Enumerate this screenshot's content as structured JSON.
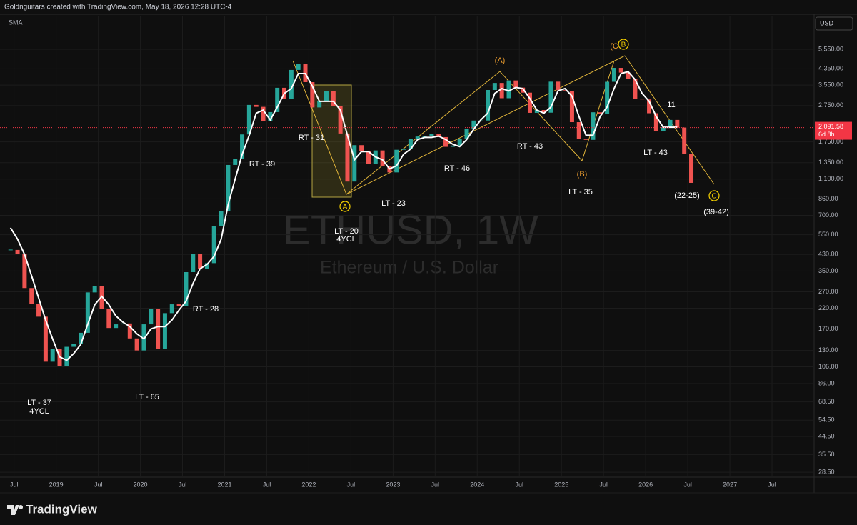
{
  "header": {
    "text": "Goldnguitars created with TradingView.com, May 18, 2026 12:28 UTC-4",
    "logo": "TradingView"
  },
  "chart_data": {
    "type": "candlestick",
    "title": "ETHUSD, 1W",
    "subtitle": "Ethereum / U.S. Dollar",
    "currency": "USD",
    "log_scale": true,
    "grid": true,
    "up_color": "#26a69a",
    "down_color": "#ef5350",
    "x": [
      "2018-06",
      "2018-07",
      "2018-08",
      "2018-09",
      "2018-10",
      "2018-11",
      "2018-12",
      "2019-01",
      "2019-02",
      "2019-03",
      "2019-04",
      "2019-05",
      "2019-06",
      "2019-07",
      "2019-08",
      "2019-09",
      "2019-10",
      "2019-11",
      "2019-12",
      "2020-01",
      "2020-02",
      "2020-03",
      "2020-04",
      "2020-05",
      "2020-06",
      "2020-07",
      "2020-08",
      "2020-09",
      "2020-10",
      "2020-11",
      "2020-12",
      "2021-01",
      "2021-02",
      "2021-03",
      "2021-04",
      "2021-05",
      "2021-06",
      "2021-07",
      "2021-08",
      "2021-09",
      "2021-10",
      "2021-11",
      "2021-12",
      "2022-01",
      "2022-02",
      "2022-03",
      "2022-04",
      "2022-05",
      "2022-06",
      "2022-07",
      "2022-08",
      "2022-09",
      "2022-10",
      "2022-11",
      "2022-12",
      "2023-01",
      "2023-02",
      "2023-03",
      "2023-04",
      "2023-05",
      "2023-06",
      "2023-07",
      "2023-08",
      "2023-09",
      "2023-10",
      "2023-11",
      "2023-12",
      "2024-01",
      "2024-02",
      "2024-03",
      "2024-04",
      "2024-05",
      "2024-06",
      "2024-07",
      "2024-08",
      "2024-09",
      "2024-10",
      "2024-11",
      "2024-12",
      "2025-01",
      "2025-02",
      "2025-03",
      "2025-04",
      "2025-05",
      "2025-06",
      "2025-07",
      "2025-08",
      "2025-09",
      "2025-10",
      "2025-11",
      "2025-12",
      "2026-01",
      "2026-02",
      "2026-03",
      "2026-04",
      "2026-05",
      "2026-06",
      "2026-07"
    ],
    "values": [
      455,
      433,
      283,
      232,
      198,
      113,
      133,
      107,
      136,
      141,
      162,
      268,
      291,
      218,
      172,
      180,
      182,
      151,
      130,
      180,
      218,
      133,
      207,
      231,
      225,
      345,
      434,
      359,
      386,
      612,
      737,
      1312,
      1417,
      1919,
      2773,
      2707,
      2275,
      2536,
      3433,
      3001,
      4288,
      4631,
      3683,
      2688,
      2922,
      3283,
      2728,
      1942,
      1067,
      1679,
      1553,
      1328,
      1572,
      1296,
      1196,
      1585,
      1605,
      1822,
      1870,
      1874,
      1934,
      1857,
      1645,
      1671,
      1816,
      2052,
      2282,
      2283,
      3340,
      3647,
      3015,
      3761,
      3440,
      3231,
      2513,
      2602,
      2518,
      3705,
      3332,
      3300,
      2237,
      1822,
      1794,
      2530,
      2486,
      3700,
      4400,
      4150,
      3850,
      3000,
      2970,
      2500,
      2000,
      2100,
      2300,
      2091.58,
      1500,
      1050
    ],
    "sma": {
      "name": "SMA",
      "color": "#ffffff",
      "values": [
        600,
        520,
        430,
        330,
        250,
        190,
        150,
        120,
        115,
        125,
        140,
        180,
        230,
        255,
        230,
        200,
        185,
        175,
        160,
        150,
        170,
        175,
        175,
        190,
        215,
        240,
        300,
        360,
        380,
        420,
        520,
        800,
        1100,
        1500,
        1900,
        2500,
        2600,
        2300,
        2700,
        3200,
        3400,
        4100,
        4100,
        3500,
        2900,
        2900,
        2900,
        2600,
        1900,
        1400,
        1550,
        1550,
        1450,
        1400,
        1250,
        1300,
        1500,
        1600,
        1800,
        1850,
        1850,
        1880,
        1800,
        1700,
        1650,
        1800,
        2050,
        2300,
        2500,
        3200,
        3400,
        3300,
        3450,
        3400,
        3000,
        2600,
        2500,
        2700,
        3300,
        3400,
        3100,
        2400,
        1900,
        1900,
        2400,
        2700,
        3400,
        4100,
        4200,
        3800,
        3200,
        2900,
        2400,
        2100,
        2100,
        2100,
        null,
        null
      ]
    },
    "last_price": {
      "value": 2091.58,
      "label": "2,091.58"
    },
    "countdown": "6d 8h",
    "xlim": [
      "2018-05",
      "2028-01"
    ],
    "xticks": [
      {
        "value": "2018-07",
        "label": "Jul"
      },
      {
        "value": "2019-01",
        "label": "2019"
      },
      {
        "value": "2019-07",
        "label": "Jul"
      },
      {
        "value": "2020-01",
        "label": "2020"
      },
      {
        "value": "2020-07",
        "label": "Jul"
      },
      {
        "value": "2021-01",
        "label": "2021"
      },
      {
        "value": "2021-07",
        "label": "Jul"
      },
      {
        "value": "2022-01",
        "label": "2022"
      },
      {
        "value": "2022-07",
        "label": "Jul"
      },
      {
        "value": "2023-01",
        "label": "2023"
      },
      {
        "value": "2023-07",
        "label": "Jul"
      },
      {
        "value": "2024-01",
        "label": "2024"
      },
      {
        "value": "2024-07",
        "label": "Jul"
      },
      {
        "value": "2025-01",
        "label": "2025"
      },
      {
        "value": "2025-07",
        "label": "Jul"
      },
      {
        "value": "2026-01",
        "label": "2026"
      },
      {
        "value": "2026-07",
        "label": "Jul"
      },
      {
        "value": "2027-01",
        "label": "2027"
      },
      {
        "value": "2027-07",
        "label": "Jul"
      }
    ],
    "ylim": [
      26.8,
      8430
    ],
    "yticks": [
      {
        "value": 5550,
        "label": "5,550.00"
      },
      {
        "value": 4350,
        "label": "4,350.00"
      },
      {
        "value": 3550,
        "label": "3,550.00"
      },
      {
        "value": 2750,
        "label": "2,750.00"
      },
      {
        "value": 1750,
        "label": "1,750.00"
      },
      {
        "value": 1350,
        "label": "1,350.00"
      },
      {
        "value": 1100,
        "label": "1,100.00"
      },
      {
        "value": 860,
        "label": "860.00"
      },
      {
        "value": 700,
        "label": "700.00"
      },
      {
        "value": 550,
        "label": "550.00"
      },
      {
        "value": 430,
        "label": "430.00"
      },
      {
        "value": 350,
        "label": "350.00"
      },
      {
        "value": 270,
        "label": "270.00"
      },
      {
        "value": 220,
        "label": "220.00"
      },
      {
        "value": 170,
        "label": "170.00"
      },
      {
        "value": 130,
        "label": "130.00"
      },
      {
        "value": 106,
        "label": "106.00"
      },
      {
        "value": 86,
        "label": "86.00"
      },
      {
        "value": 68.5,
        "label": "68.50"
      },
      {
        "value": 54.5,
        "label": "54.50"
      },
      {
        "value": 44.5,
        "label": "44.50"
      },
      {
        "value": 35.5,
        "label": "35.50"
      },
      {
        "value": 28.5,
        "label": "28.50"
      }
    ],
    "annotations": [
      "RT - 31",
      "RT - 39",
      "LT - 20",
      "4YCL",
      "LT - 23",
      "RT - 46",
      "(A)",
      "RT - 43",
      "(B)",
      "LT - 35",
      "(C",
      "B",
      "11",
      "LT - 43",
      "(22-25)",
      "C",
      "(39-42)",
      "A",
      "LT - 37",
      "4YCL",
      "LT - 65",
      "RT - 28"
    ]
  }
}
